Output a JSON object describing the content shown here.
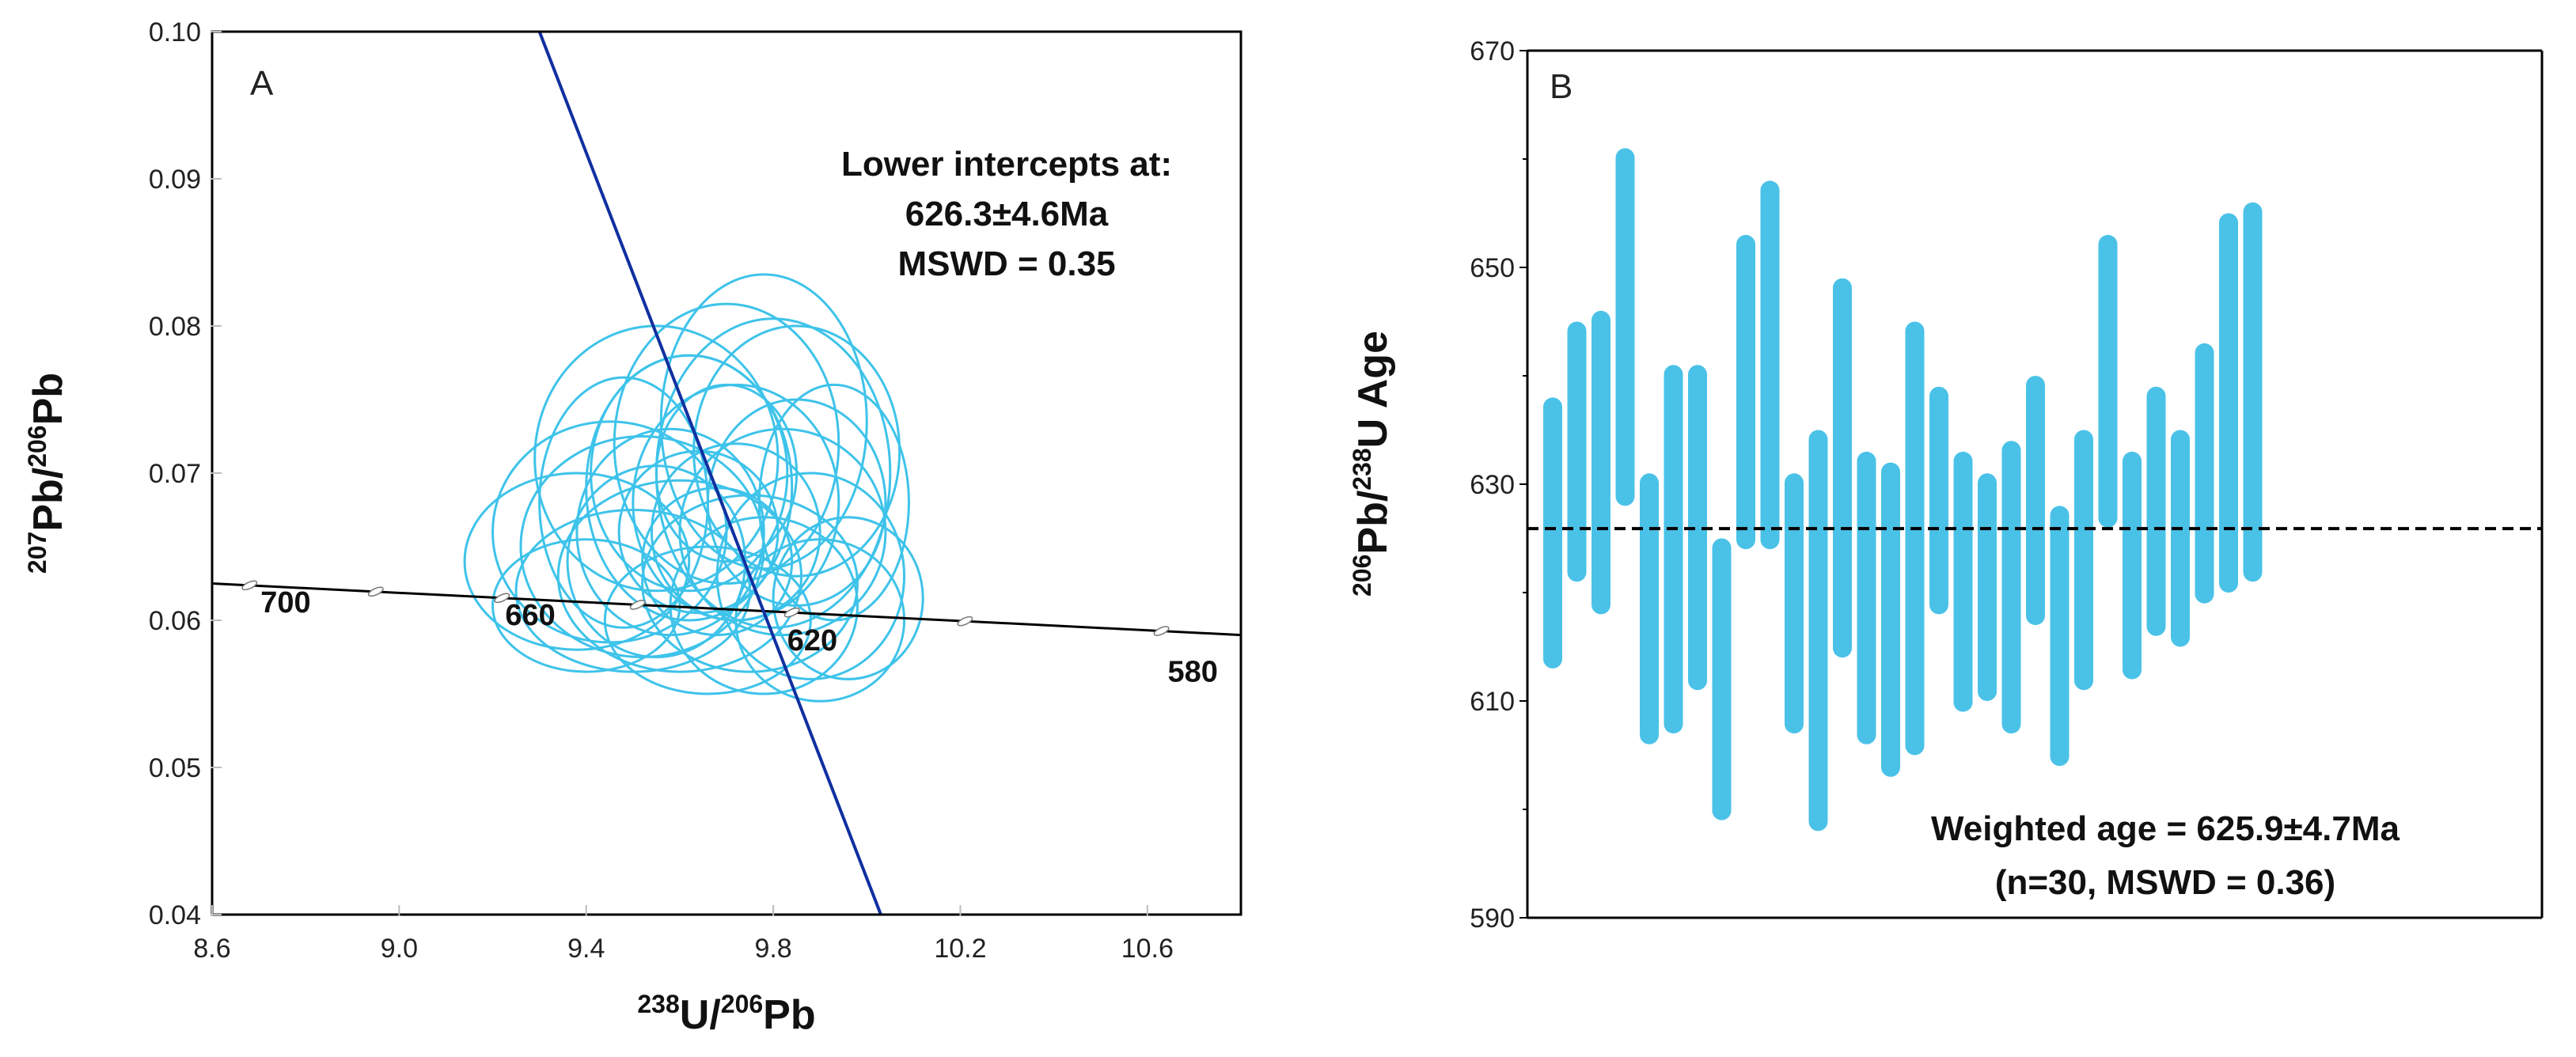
{
  "chart_data": [
    {
      "panel": "A",
      "type": "scatter",
      "subtype": "concordia",
      "panel_label": "A",
      "xlabel": {
        "sup1": "238",
        "base1": "U/",
        "sup2": "206",
        "base2": "Pb"
      },
      "ylabel": {
        "sup1": "207",
        "base1": "Pb/",
        "sup2": "206",
        "base2": "Pb"
      },
      "xlim": [
        8.6,
        10.8
      ],
      "ylim": [
        0.04,
        0.1
      ],
      "xticks": [
        "8.6",
        "9.0",
        "9.4",
        "9.8",
        "10.2",
        "10.6"
      ],
      "yticks": [
        "0.04",
        "0.05",
        "0.06",
        "0.07",
        "0.08",
        "0.09",
        "0.10"
      ],
      "concordia_curve": [
        [
          8.6,
          0.0625
        ],
        [
          10.8,
          0.059
        ]
      ],
      "age_markers": [
        {
          "x": 8.68,
          "label": "700"
        },
        {
          "x": 8.95,
          "label": ""
        },
        {
          "x": 9.22,
          "label": "660"
        },
        {
          "x": 9.51,
          "label": ""
        },
        {
          "x": 9.84,
          "label": "620"
        },
        {
          "x": 10.21,
          "label": ""
        },
        {
          "x": 10.63,
          "label": "580"
        }
      ],
      "discordia_line": [
        [
          9.3,
          0.1
        ],
        [
          10.03,
          0.04
        ]
      ],
      "ellipse_color": "#3ec3ea",
      "discordia_color": "#1030a0",
      "error_ellipses": [
        {
          "cx": 9.62,
          "cy": 0.07,
          "rx": 0.21,
          "ry": 0.008
        },
        {
          "cx": 9.7,
          "cy": 0.072,
          "rx": 0.24,
          "ry": 0.0095
        },
        {
          "cx": 9.78,
          "cy": 0.0735,
          "rx": 0.22,
          "ry": 0.01
        },
        {
          "cx": 9.55,
          "cy": 0.071,
          "rx": 0.26,
          "ry": 0.009
        },
        {
          "cx": 9.85,
          "cy": 0.0715,
          "rx": 0.22,
          "ry": 0.0085
        },
        {
          "cx": 9.45,
          "cy": 0.066,
          "rx": 0.25,
          "ry": 0.0075
        },
        {
          "cx": 9.38,
          "cy": 0.064,
          "rx": 0.24,
          "ry": 0.006
        },
        {
          "cx": 9.5,
          "cy": 0.062,
          "rx": 0.25,
          "ry": 0.0055
        },
        {
          "cx": 9.6,
          "cy": 0.063,
          "rx": 0.26,
          "ry": 0.0065
        },
        {
          "cx": 9.72,
          "cy": 0.068,
          "rx": 0.22,
          "ry": 0.008
        },
        {
          "cx": 9.82,
          "cy": 0.066,
          "rx": 0.22,
          "ry": 0.007
        },
        {
          "cx": 9.88,
          "cy": 0.063,
          "rx": 0.2,
          "ry": 0.007
        },
        {
          "cx": 9.9,
          "cy": 0.06,
          "rx": 0.18,
          "ry": 0.0055
        },
        {
          "cx": 9.78,
          "cy": 0.061,
          "rx": 0.2,
          "ry": 0.006
        },
        {
          "cx": 9.66,
          "cy": 0.06,
          "rx": 0.22,
          "ry": 0.005
        },
        {
          "cx": 9.55,
          "cy": 0.064,
          "rx": 0.19,
          "ry": 0.0065
        },
        {
          "cx": 9.62,
          "cy": 0.069,
          "rx": 0.22,
          "ry": 0.009
        },
        {
          "cx": 9.72,
          "cy": 0.066,
          "rx": 0.18,
          "ry": 0.006
        },
        {
          "cx": 9.8,
          "cy": 0.07,
          "rx": 0.25,
          "ry": 0.0105
        },
        {
          "cx": 9.48,
          "cy": 0.068,
          "rx": 0.18,
          "ry": 0.0085
        },
        {
          "cx": 9.93,
          "cy": 0.068,
          "rx": 0.16,
          "ry": 0.008
        },
        {
          "cx": 9.68,
          "cy": 0.064,
          "rx": 0.16,
          "ry": 0.005
        },
        {
          "cx": 9.4,
          "cy": 0.061,
          "rx": 0.2,
          "ry": 0.0045
        },
        {
          "cx": 9.75,
          "cy": 0.0625,
          "rx": 0.23,
          "ry": 0.006
        },
        {
          "cx": 9.58,
          "cy": 0.066,
          "rx": 0.2,
          "ry": 0.007
        },
        {
          "cx": 9.85,
          "cy": 0.068,
          "rx": 0.19,
          "ry": 0.007
        },
        {
          "cx": 9.7,
          "cy": 0.07,
          "rx": 0.15,
          "ry": 0.006
        },
        {
          "cx": 9.52,
          "cy": 0.065,
          "rx": 0.26,
          "ry": 0.0075
        },
        {
          "cx": 9.96,
          "cy": 0.0615,
          "rx": 0.16,
          "ry": 0.0055
        },
        {
          "cx": 9.64,
          "cy": 0.066,
          "rx": 0.17,
          "ry": 0.0055
        }
      ],
      "annotation": [
        "Lower intercepts at:",
        "626.3±4.6Ma",
        "MSWD = 0.35"
      ]
    },
    {
      "panel": "B",
      "type": "bar",
      "subtype": "range-bars",
      "panel_label": "B",
      "ylabel": {
        "sup1": "206",
        "base1": "Pb/",
        "sup2": "238",
        "base2": "U Age"
      },
      "ylim": [
        590,
        670
      ],
      "yticks": [
        "590",
        "610",
        "630",
        "650",
        "670"
      ],
      "weighted_mean": 625.9,
      "bar_color": "#4ac2e8",
      "bars": [
        {
          "low": 613,
          "high": 638
        },
        {
          "low": 621,
          "high": 645
        },
        {
          "low": 618,
          "high": 646
        },
        {
          "low": 628,
          "high": 661
        },
        {
          "low": 606,
          "high": 631
        },
        {
          "low": 607,
          "high": 641
        },
        {
          "low": 611,
          "high": 641
        },
        {
          "low": 599,
          "high": 625
        },
        {
          "low": 624,
          "high": 653
        },
        {
          "low": 624,
          "high": 658
        },
        {
          "low": 607,
          "high": 631
        },
        {
          "low": 598,
          "high": 635
        },
        {
          "low": 614,
          "high": 649
        },
        {
          "low": 606,
          "high": 633
        },
        {
          "low": 603,
          "high": 632
        },
        {
          "low": 605,
          "high": 645
        },
        {
          "low": 618,
          "high": 639
        },
        {
          "low": 609,
          "high": 633
        },
        {
          "low": 610,
          "high": 631
        },
        {
          "low": 607,
          "high": 634
        },
        {
          "low": 617,
          "high": 640
        },
        {
          "low": 604,
          "high": 628
        },
        {
          "low": 611,
          "high": 635
        },
        {
          "low": 626,
          "high": 653
        },
        {
          "low": 612,
          "high": 633
        },
        {
          "low": 616,
          "high": 639
        },
        {
          "low": 615,
          "high": 635
        },
        {
          "low": 619,
          "high": 643
        },
        {
          "low": 620,
          "high": 655
        },
        {
          "low": 621,
          "high": 656
        }
      ],
      "annotation": [
        "Weighted age = 625.9±4.7Ma",
        "(n=30, MSWD = 0.36)"
      ]
    }
  ]
}
